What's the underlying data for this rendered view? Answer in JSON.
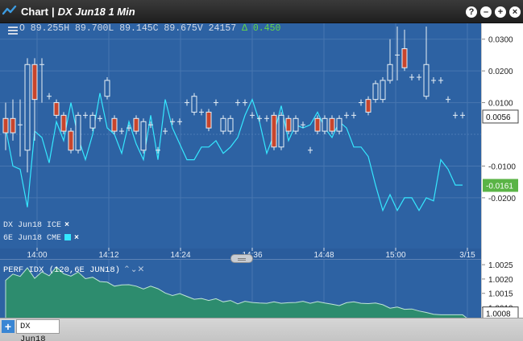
{
  "window": {
    "title_prefix": "Chart",
    "title_separator": "|",
    "title_symbol": "DX Jun18 1 Min",
    "buttons": [
      {
        "name": "help-button",
        "glyph": "?"
      },
      {
        "name": "minimize-button",
        "glyph": "–"
      },
      {
        "name": "maximize-button",
        "glyph": "+"
      },
      {
        "name": "close-button",
        "glyph": "×"
      }
    ]
  },
  "ohlc_bar": {
    "text": "O 89.255H 89.700L 89.145C 89.675V 24157",
    "change": "Δ 0.450",
    "change_color": "#64d64a"
  },
  "legend": {
    "series1": "DX Jun18 ICE",
    "series2": "6E Jun18 CME",
    "close_glyph": "×",
    "series2_color": "#35e8ff"
  },
  "study": {
    "label": "PERF IDX (120,6E JUN18)",
    "controls": "⌃⌄✕"
  },
  "tabs": {
    "add_label": "+",
    "active": "DX Jun18"
  },
  "colors": {
    "plot_bg": "#2d62a3",
    "up_candle": "#e8f0f6",
    "down_candle": "#c8452c",
    "compare_line": "#35e8ff",
    "area_fill": "#2d8c6e",
    "current_badge": "#5ab446"
  },
  "chart_data": [
    {
      "type": "line",
      "title": "DX Jun18 1 Min",
      "x_ticks": [
        "14:00",
        "14:12",
        "14:24",
        "14:36",
        "14:48",
        "15:00",
        "3/15"
      ],
      "y_ticks": [
        "0.0300",
        "0.0200",
        "0.0100",
        "-0.0100",
        "-0.0200"
      ],
      "y_values": [
        0.03,
        0.02,
        0.01,
        -0.01,
        -0.02
      ],
      "ylim": [
        -0.036,
        0.035
      ],
      "current_value_labels": [
        {
          "series": "DX Jun18 ICE",
          "value": "0.0056"
        },
        {
          "series": "6E Jun18 CME",
          "value": "-0.0161"
        }
      ],
      "series": [
        {
          "name": "DX Jun18 ICE",
          "style": "candlestick",
          "candles": [
            {
              "o": 0.005,
              "c": 0.0005,
              "h": 0.01,
              "l": -0.005
            },
            {
              "o": 0.005,
              "c": 0.0005,
              "h": 0.011,
              "l": -0.002
            },
            {
              "o": 0.003,
              "c": 0.003,
              "h": 0.011,
              "l": -0.007
            },
            {
              "o": -0.005,
              "c": 0.022,
              "h": 0.024,
              "l": -0.012
            },
            {
              "o": 0.022,
              "c": 0.011,
              "h": 0.024,
              "l": -0.002
            },
            {
              "o": 0.022,
              "c": 0.022,
              "h": 0.024,
              "l": 0.01
            },
            {
              "o": 0.012,
              "c": 0.012,
              "h": 0.013,
              "l": 0.011
            },
            {
              "o": 0.01,
              "c": 0.006,
              "h": 0.011,
              "l": 0.005
            },
            {
              "o": 0.006,
              "c": 0.001,
              "h": 0.007,
              "l": 0.0
            },
            {
              "o": 0.001,
              "c": -0.005,
              "h": 0.002,
              "l": -0.006
            },
            {
              "o": -0.005,
              "c": 0.006,
              "h": 0.007,
              "l": -0.006
            },
            {
              "o": 0.006,
              "c": 0.006,
              "h": 0.007,
              "l": 0.005
            },
            {
              "o": 0.002,
              "c": 0.006,
              "h": 0.007,
              "l": 0.001
            },
            {
              "o": 0.005,
              "c": 0.005,
              "h": 0.006,
              "l": 0.004
            },
            {
              "o": 0.012,
              "c": 0.017,
              "h": 0.018,
              "l": 0.011
            },
            {
              "o": 0.005,
              "c": 0.001,
              "h": 0.006,
              "l": 0.0
            },
            {
              "o": 0.001,
              "c": 0.001,
              "h": 0.002,
              "l": 0.0
            },
            {
              "o": 0.002,
              "c": 0.002,
              "h": 0.003,
              "l": 0.001
            },
            {
              "o": 0.005,
              "c": 0.001,
              "h": 0.006,
              "l": 0.0
            },
            {
              "o": -0.005,
              "c": 0.004,
              "h": 0.005,
              "l": -0.006
            },
            {
              "o": 0.003,
              "c": 0.003,
              "h": 0.004,
              "l": 0.002
            },
            {
              "o": -0.005,
              "c": -0.005,
              "h": -0.004,
              "l": -0.006
            },
            {
              "o": 0.001,
              "c": 0.001,
              "h": 0.002,
              "l": 0.0
            },
            {
              "o": 0.004,
              "c": 0.004,
              "h": 0.005,
              "l": 0.003
            },
            {
              "o": 0.004,
              "c": 0.004,
              "h": 0.005,
              "l": 0.003
            },
            {
              "o": 0.01,
              "c": 0.01,
              "h": 0.011,
              "l": 0.009
            },
            {
              "o": 0.007,
              "c": 0.012,
              "h": 0.013,
              "l": 0.006
            },
            {
              "o": 0.007,
              "c": 0.007,
              "h": 0.008,
              "l": 0.006
            },
            {
              "o": 0.007,
              "c": 0.002,
              "h": 0.008,
              "l": 0.001
            },
            {
              "o": 0.01,
              "c": 0.01,
              "h": 0.011,
              "l": 0.009
            },
            {
              "o": 0.001,
              "c": 0.005,
              "h": 0.006,
              "l": 0.0
            },
            {
              "o": 0.001,
              "c": 0.005,
              "h": 0.006,
              "l": 0.0
            },
            {
              "o": 0.01,
              "c": 0.01,
              "h": 0.011,
              "l": 0.009
            },
            {
              "o": 0.01,
              "c": 0.01,
              "h": 0.011,
              "l": 0.009
            },
            {
              "o": 0.006,
              "c": 0.006,
              "h": 0.007,
              "l": 0.005
            },
            {
              "o": 0.005,
              "c": 0.005,
              "h": 0.006,
              "l": 0.004
            },
            {
              "o": 0.005,
              "c": 0.005,
              "h": 0.006,
              "l": 0.004
            },
            {
              "o": 0.006,
              "c": -0.004,
              "h": 0.007,
              "l": -0.005
            },
            {
              "o": -0.004,
              "c": 0.006,
              "h": 0.007,
              "l": -0.005
            },
            {
              "o": 0.005,
              "c": 0.001,
              "h": 0.006,
              "l": 0.0
            },
            {
              "o": 0.001,
              "c": 0.005,
              "h": 0.006,
              "l": 0.0
            },
            {
              "o": 0.003,
              "c": 0.003,
              "h": 0.004,
              "l": 0.002
            },
            {
              "o": -0.005,
              "c": -0.005,
              "h": -0.004,
              "l": -0.006
            },
            {
              "o": 0.005,
              "c": 0.001,
              "h": 0.006,
              "l": 0.0
            },
            {
              "o": 0.001,
              "c": 0.005,
              "h": 0.006,
              "l": 0.0
            },
            {
              "o": 0.005,
              "c": 0.001,
              "h": 0.006,
              "l": 0.0
            },
            {
              "o": 0.001,
              "c": 0.005,
              "h": 0.006,
              "l": 0.0
            },
            {
              "o": 0.006,
              "c": 0.006,
              "h": 0.007,
              "l": 0.005
            },
            {
              "o": 0.006,
              "c": 0.006,
              "h": 0.007,
              "l": 0.005
            },
            {
              "o": 0.01,
              "c": 0.01,
              "h": 0.011,
              "l": 0.009
            },
            {
              "o": 0.011,
              "c": 0.007,
              "h": 0.012,
              "l": 0.006
            },
            {
              "o": 0.011,
              "c": 0.016,
              "h": 0.017,
              "l": 0.01
            },
            {
              "o": 0.011,
              "c": 0.017,
              "h": 0.018,
              "l": 0.01
            },
            {
              "o": 0.017,
              "c": 0.022,
              "h": 0.03,
              "l": 0.016
            },
            {
              "o": 0.025,
              "c": 0.025,
              "h": 0.034,
              "l": 0.017
            },
            {
              "o": 0.027,
              "c": 0.021,
              "h": 0.033,
              "l": 0.02
            },
            {
              "o": 0.018,
              "c": 0.018,
              "h": 0.019,
              "l": 0.017
            },
            {
              "o": 0.018,
              "c": 0.018,
              "h": 0.019,
              "l": 0.017
            },
            {
              "o": 0.012,
              "c": 0.022,
              "h": 0.034,
              "l": 0.011
            },
            {
              "o": 0.017,
              "c": 0.017,
              "h": 0.018,
              "l": 0.016
            },
            {
              "o": 0.017,
              "c": 0.017,
              "h": 0.018,
              "l": 0.016
            },
            {
              "o": 0.011,
              "c": 0.011,
              "h": 0.012,
              "l": 0.01
            },
            {
              "o": 0.006,
              "c": 0.006,
              "h": 0.007,
              "l": 0.005
            },
            {
              "o": 0.006,
              "c": 0.006,
              "h": 0.007,
              "l": 0.005
            }
          ]
        },
        {
          "name": "6E Jun18 CME",
          "style": "line",
          "values": [
            0.002,
            -0.01,
            -0.011,
            -0.023,
            0.001,
            -0.001,
            -0.009,
            0.004,
            -0.002,
            0.01,
            -0.001,
            -0.008,
            0.0,
            0.013,
            0.002,
            0.0,
            -0.006,
            0.004,
            -0.003,
            -0.008,
            0.006,
            -0.008,
            0.011,
            0.002,
            -0.003,
            -0.008,
            -0.008,
            -0.004,
            -0.004,
            -0.002,
            -0.006,
            -0.004,
            -0.001,
            0.006,
            0.011,
            0.004,
            -0.006,
            0.0,
            0.009,
            -0.002,
            0.003,
            0.002,
            0.003,
            0.007,
            0.002,
            -0.001,
            0.004,
            0.002,
            -0.004,
            -0.004,
            -0.007,
            -0.016,
            -0.024,
            -0.019,
            -0.024,
            -0.02,
            -0.02,
            -0.024,
            -0.02,
            -0.021,
            -0.008,
            -0.011,
            -0.016,
            -0.016
          ]
        }
      ]
    },
    {
      "type": "area",
      "title": "PERF IDX (120,6E JUN18)",
      "y_ticks": [
        "1.0025",
        "1.0020",
        "1.0015",
        "1.0010"
      ],
      "y_values": [
        1.0025,
        1.002,
        1.0015,
        1.001
      ],
      "ylim": [
        1.00065,
        1.0027
      ],
      "current_value_label": "1.0008",
      "series": [
        {
          "name": "PERF IDX (120,6E JUN18)",
          "values": [
            1.00198,
            1.0022,
            1.00212,
            1.00242,
            1.00205,
            1.00228,
            1.00214,
            1.00245,
            1.00221,
            1.00213,
            1.00227,
            1.00204,
            1.00209,
            1.00194,
            1.00192,
            1.00178,
            1.00182,
            1.00183,
            1.00178,
            1.00168,
            1.00178,
            1.00169,
            1.00154,
            1.00145,
            1.00152,
            1.00142,
            1.00132,
            1.00135,
            1.00128,
            1.00134,
            1.00123,
            1.00128,
            1.00116,
            1.00125,
            1.00121,
            1.00119,
            1.00118,
            1.00123,
            1.00118,
            1.0012,
            1.00121,
            1.00125,
            1.00118,
            1.00124,
            1.00119,
            1.00115,
            1.0011,
            1.0012,
            1.00123,
            1.00118,
            1.00117,
            1.00119,
            1.00113,
            1.00101,
            1.00105,
            1.00097,
            1.00098,
            1.00091,
            1.00086,
            1.0008,
            1.00078,
            1.00078,
            1.00078,
            1.00078
          ]
        }
      ]
    }
  ]
}
